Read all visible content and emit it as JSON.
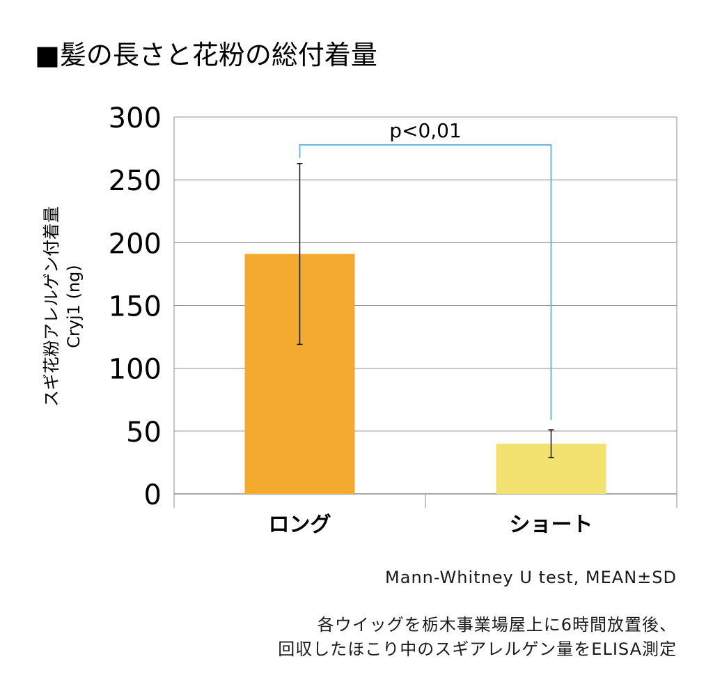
{
  "chart_data": {
    "type": "bar",
    "title": "■髪の長さと花粉の総付着量",
    "categories": [
      "ロング",
      "ショート"
    ],
    "values": [
      191,
      40
    ],
    "errors": [
      72,
      11
    ],
    "colors": [
      "#F3AA2F",
      "#F4E270"
    ],
    "ylabel_line1": "スギ花粉アレルゲン付着量",
    "ylabel_line2": "Cryj1 (ng)",
    "ylim": [
      0,
      300
    ],
    "yticks": [
      0,
      50,
      100,
      150,
      200,
      250,
      300
    ],
    "grid": true,
    "significance": {
      "label": "p<0,01",
      "color": "#6BB6DB"
    }
  },
  "notes": {
    "test": "Mann-Whitney U test, MEAN±SD",
    "method_line1": "各ウイッグを栃木事業場屋上に6時間放置後、",
    "method_line2": "回収したほこり中のスギアレルゲン量をELISA測定"
  }
}
